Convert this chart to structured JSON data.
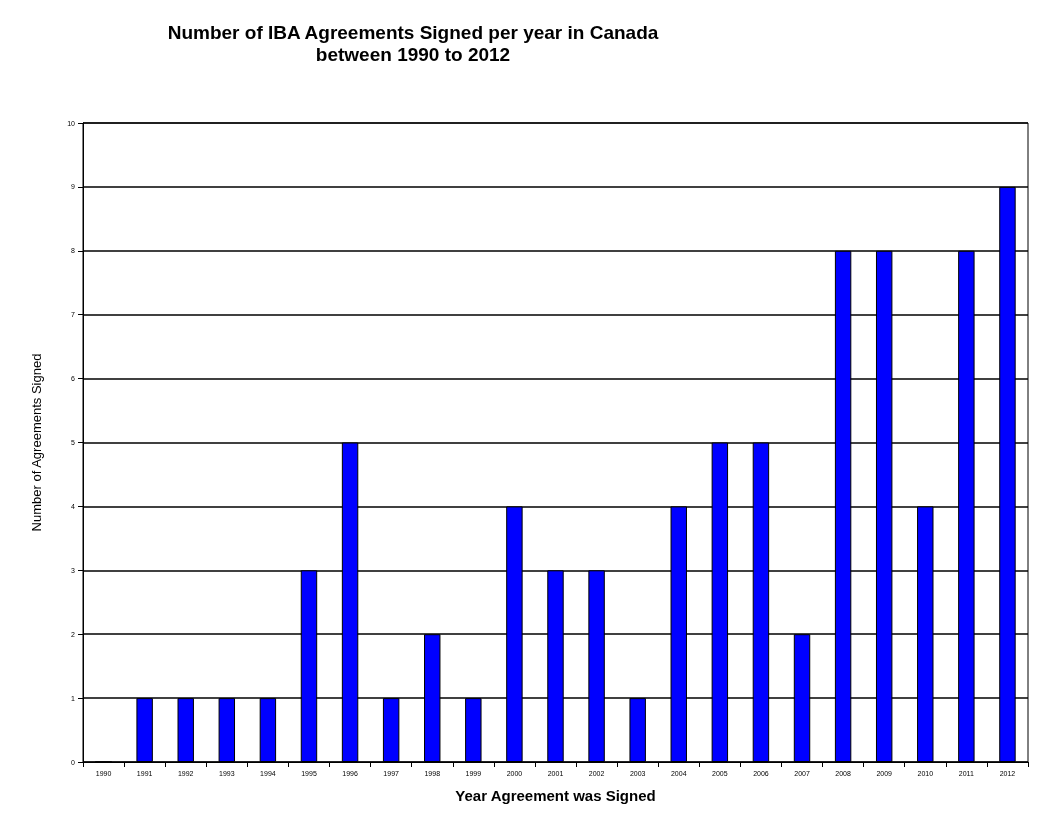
{
  "chart_data": {
    "type": "bar",
    "title": "Number of IBA Agreements Signed per year in Canada\nbetween 1990 to 2012",
    "xlabel": "Year Agreement was Signed",
    "ylabel": "Number of Agreements Signed",
    "categories": [
      "1990",
      "1991",
      "1992",
      "1993",
      "1994",
      "1995",
      "1996",
      "1997",
      "1998",
      "1999",
      "2000",
      "2001",
      "2002",
      "2003",
      "2004",
      "2005",
      "2006",
      "2007",
      "2008",
      "2009",
      "2010",
      "2011",
      "2012"
    ],
    "values": [
      0,
      1,
      1,
      1,
      1,
      3,
      5,
      1,
      2,
      1,
      4,
      3,
      3,
      1,
      4,
      5,
      5,
      2,
      8,
      8,
      4,
      8,
      9
    ],
    "color": "#0000ff",
    "ylim": [
      0,
      10
    ],
    "yticks": [
      0,
      1,
      2,
      3,
      4,
      5,
      6,
      7,
      8,
      9,
      10
    ],
    "grid": "y"
  }
}
